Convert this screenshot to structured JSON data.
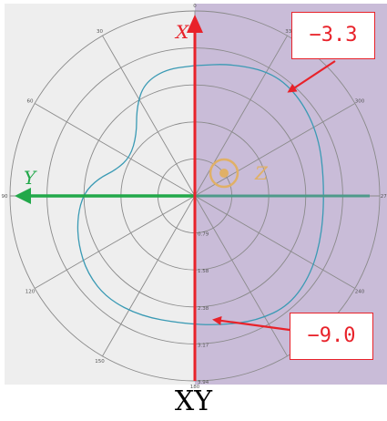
{
  "caption": "XY",
  "axes": {
    "x_label": "X",
    "y_label": "Y",
    "z_label": "Z"
  },
  "callouts": {
    "outer_value": "−3.3",
    "inner_value": "−9.0"
  },
  "angle_labels": [
    {
      "angle": 0,
      "text": "0"
    },
    {
      "angle": 30,
      "text": "30"
    },
    {
      "angle": 60,
      "text": "60"
    },
    {
      "angle": 90,
      "text": "90"
    },
    {
      "angle": 120,
      "text": "120"
    },
    {
      "angle": 150,
      "text": "150"
    },
    {
      "angle": 180,
      "text": "180"
    },
    {
      "angle": 240,
      "text": "240"
    },
    {
      "angle": 270,
      "text": "270"
    },
    {
      "angle": 300,
      "text": "300"
    },
    {
      "angle": 330,
      "text": "330"
    }
  ],
  "radial_labels": [
    "0.79",
    "1.58",
    "2.38",
    "3.17",
    "3.94"
  ],
  "colors": {
    "shaded_half": "#c9bcd8",
    "left_half": "#eeeeee",
    "x_axis": "#e8222a",
    "y_axis": "#22a84a",
    "z_marker": "#e0b067",
    "pattern": "#3a9ab4",
    "grid": "#8a8a8a"
  }
}
